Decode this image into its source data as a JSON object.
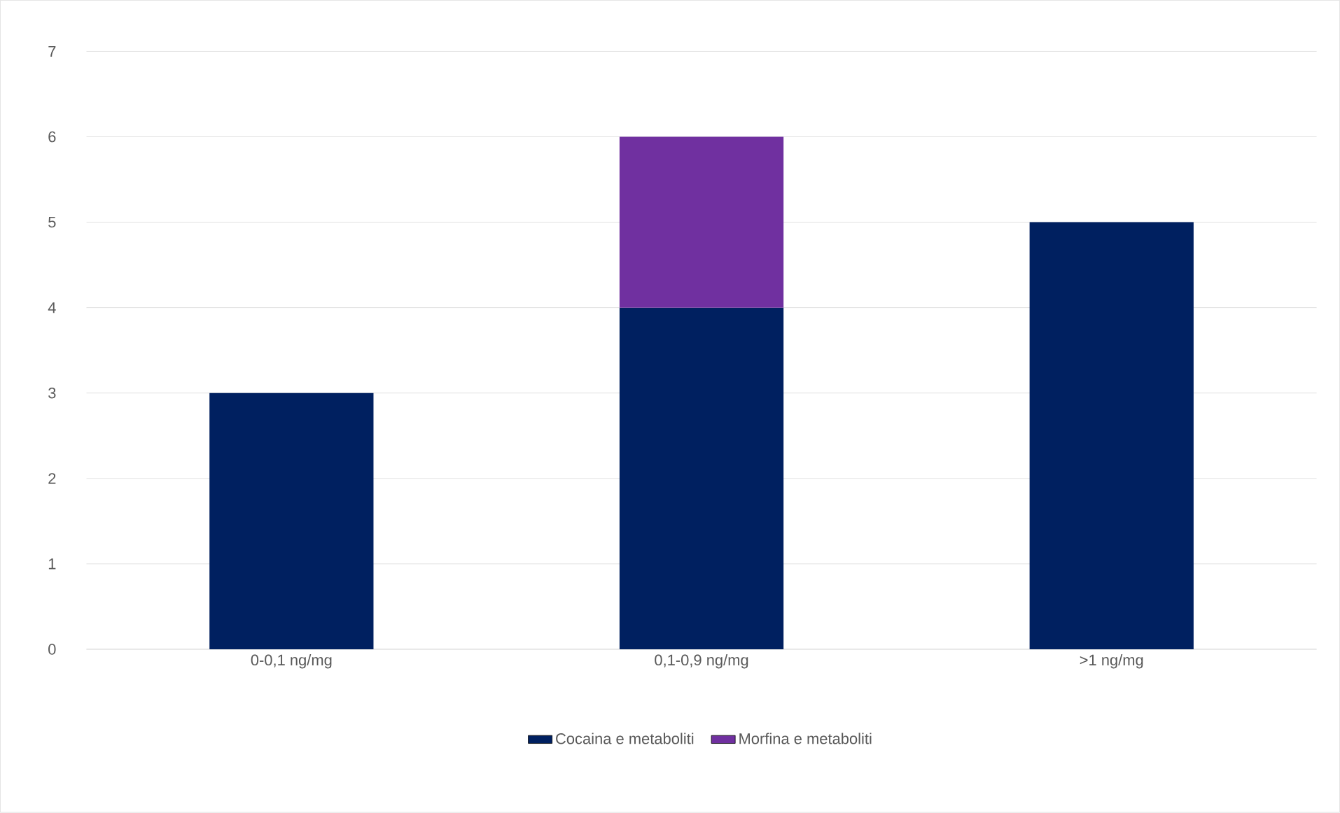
{
  "chart_data": {
    "type": "bar",
    "stacked": true,
    "categories": [
      "0-0,1 ng/mg",
      "0,1-0,9 ng/mg",
      ">1 ng/mg"
    ],
    "series": [
      {
        "name": "Cocaina e metaboliti",
        "color": "#002060",
        "values": [
          3,
          4,
          5
        ]
      },
      {
        "name": "Morfina e metaboliti",
        "color": "#7030a0",
        "values": [
          null,
          2,
          null
        ]
      }
    ],
    "ylim": [
      0,
      7
    ],
    "yticks": [
      0,
      1,
      2,
      3,
      4,
      5,
      6,
      7
    ],
    "grid": "y",
    "legend": "bottom"
  }
}
